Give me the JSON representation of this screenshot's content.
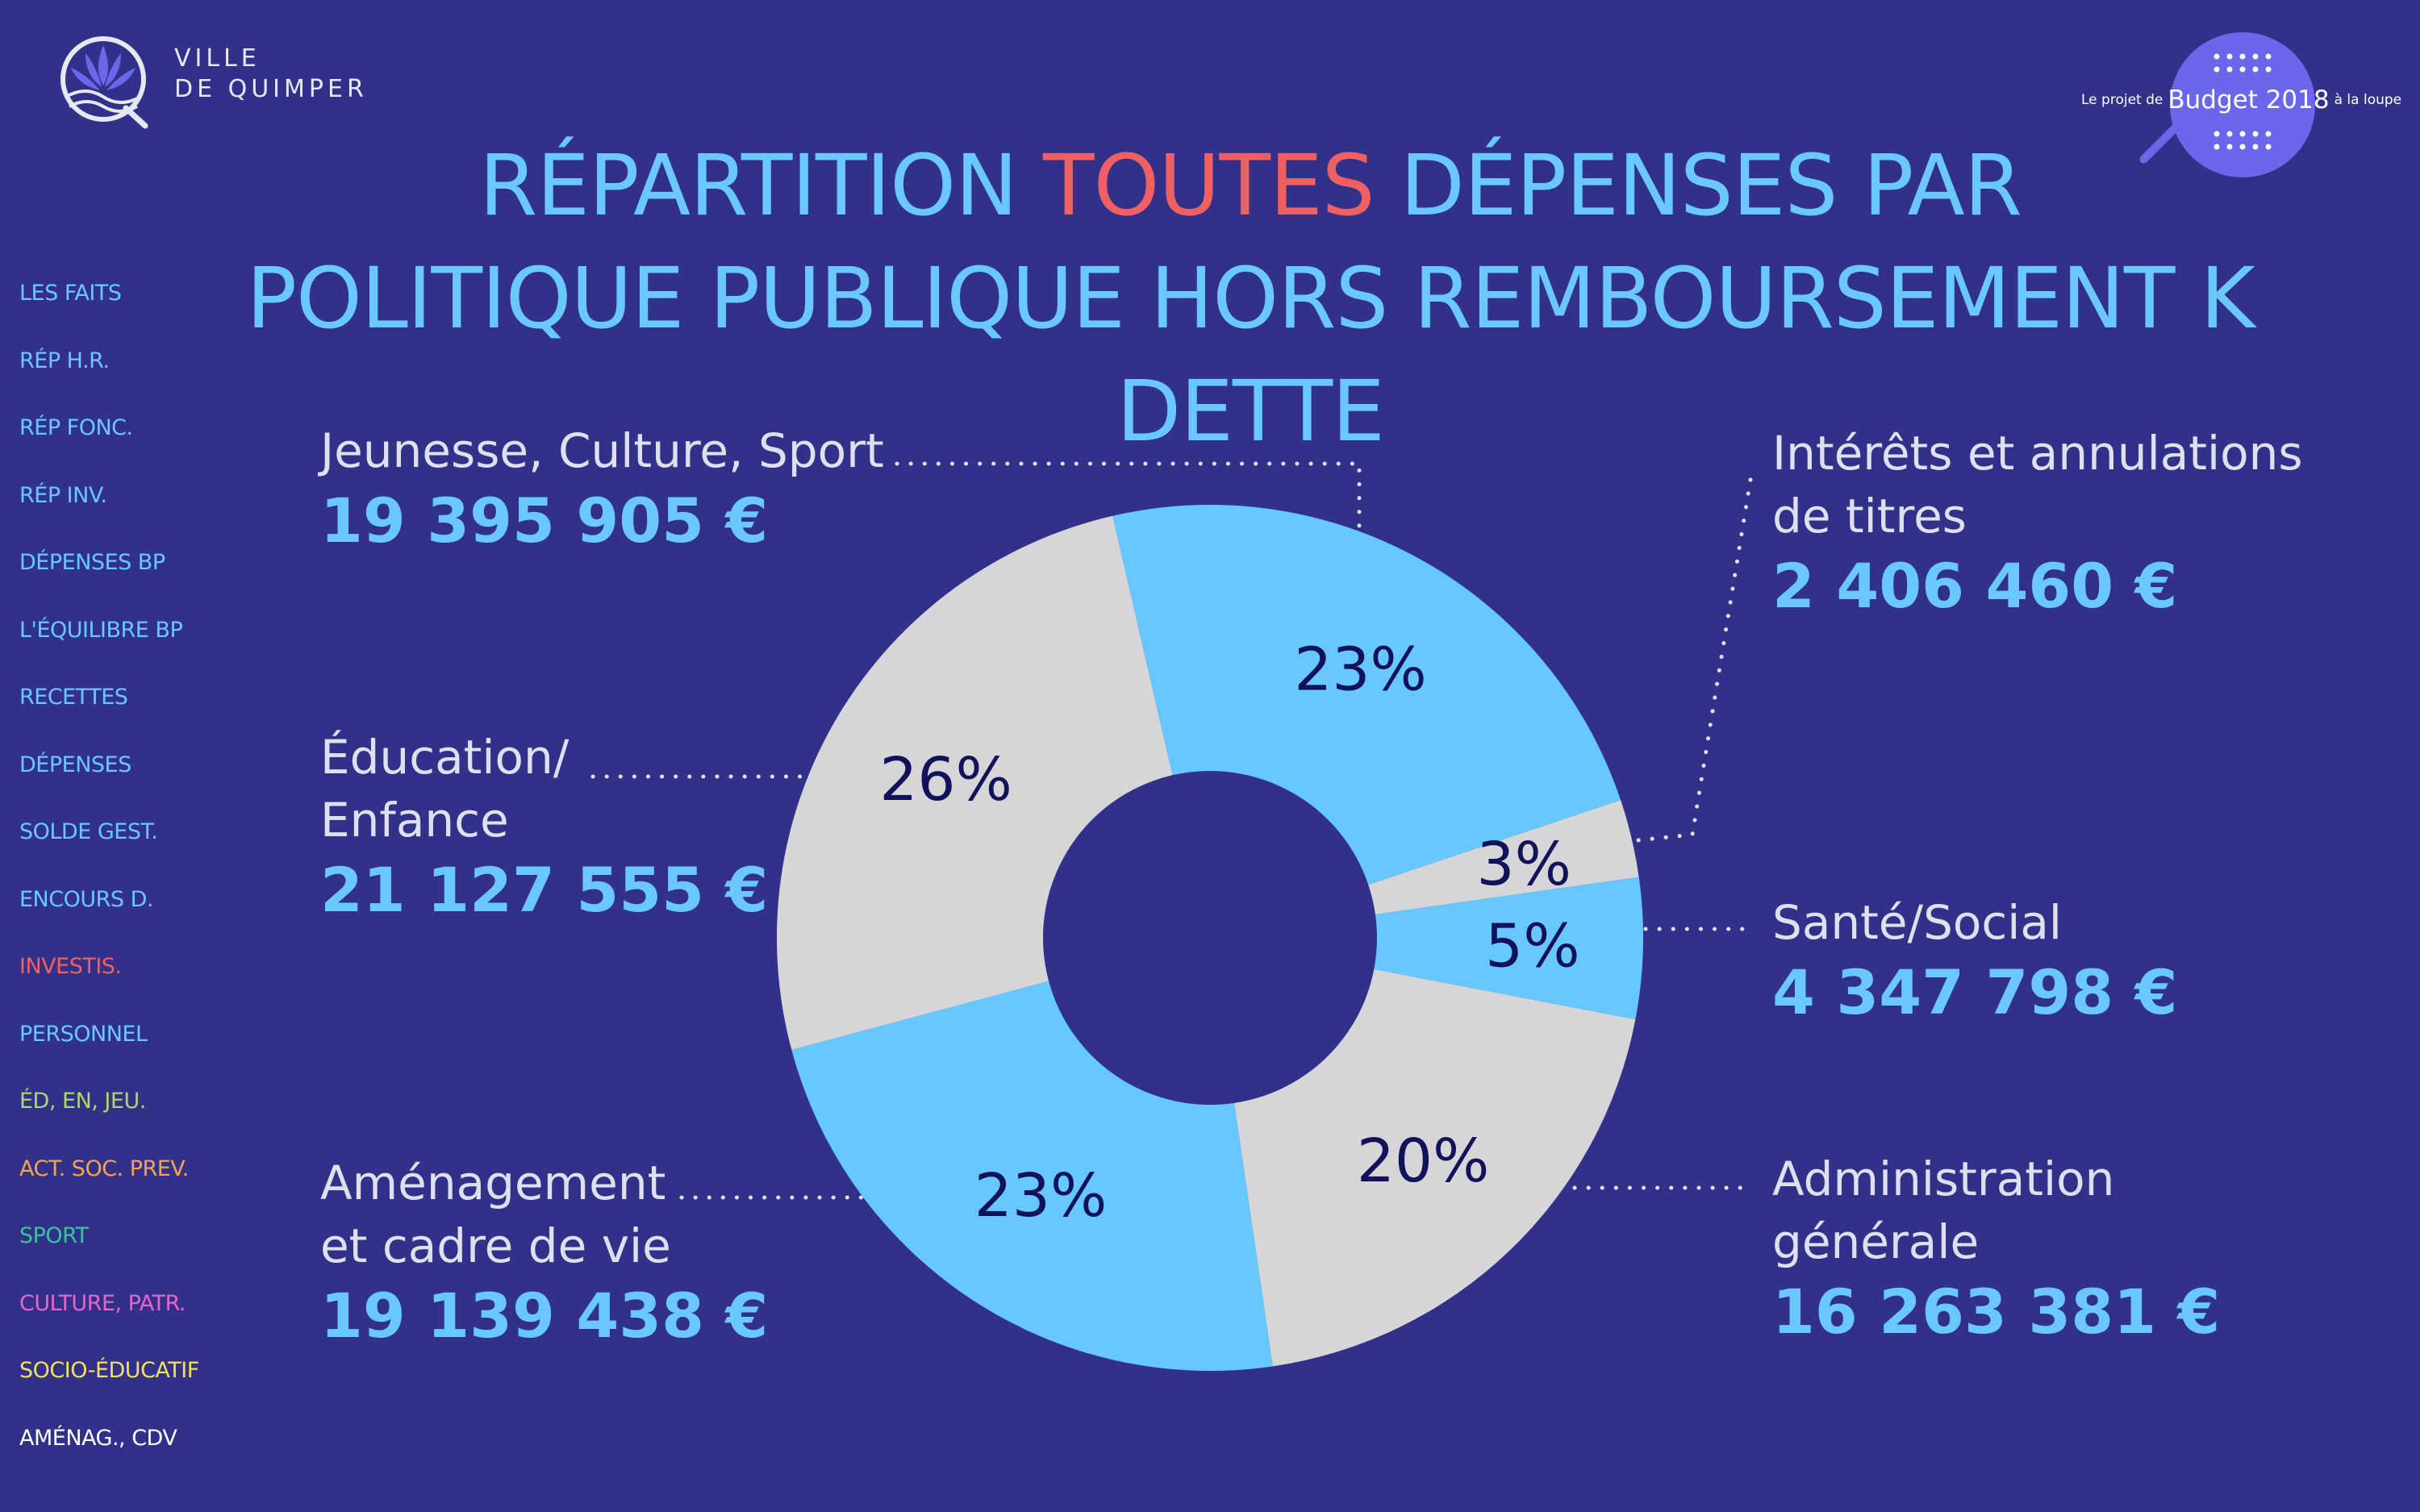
{
  "logo": {
    "line1": "VILLE",
    "line2": "DE QUIMPER"
  },
  "badge": {
    "prefix": "Le projet de",
    "main": "Budget 2018",
    "suffix": "à la loupe"
  },
  "title": {
    "part1": "RÉPARTITION ",
    "accent": "TOUTES",
    "part2": " DÉPENSES PAR",
    "line2": "POLITIQUE PUBLIQUE HORS REMBOURSEMENT K DETTE"
  },
  "colors": {
    "background": "#32318a",
    "title": "#6ac8ff",
    "accent": "#ee6062",
    "slice_blue": "#66c8fe",
    "slice_gray": "#d6d6d8",
    "pct_text": "#12125a",
    "amount": "#6ac8ff"
  },
  "nav": [
    {
      "label": "LES FAITS",
      "color": "#6ac8ff"
    },
    {
      "label": "RÉP H.R.",
      "color": "#6ac8ff"
    },
    {
      "label": "RÉP FONC.",
      "color": "#6ac8ff"
    },
    {
      "label": "RÉP INV.",
      "color": "#6ac8ff"
    },
    {
      "label": "DÉPENSES BP",
      "color": "#6ac8ff"
    },
    {
      "label": "L'ÉQUILIBRE BP",
      "color": "#6ac8ff"
    },
    {
      "label": "RECETTES",
      "color": "#6ac8ff"
    },
    {
      "label": "DÉPENSES",
      "color": "#6ac8ff"
    },
    {
      "label": "SOLDE GEST.",
      "color": "#6ac8ff"
    },
    {
      "label": "ENCOURS D.",
      "color": "#6ac8ff"
    },
    {
      "label": "INVESTIS.",
      "color": "#ee6062"
    },
    {
      "label": "PERSONNEL",
      "color": "#6ac8ff"
    },
    {
      "label": "ÉD, EN, JEU.",
      "color": "#a9d86e"
    },
    {
      "label": "ACT. SOC. PREV.",
      "color": "#f7a24e"
    },
    {
      "label": "SPORT",
      "color": "#39c39a"
    },
    {
      "label": "CULTURE, PATR.",
      "color": "#e866c8"
    },
    {
      "label": "SOCIO-ÉDUCATIF",
      "color": "#f3e05a"
    },
    {
      "label": "AMÉNAG., CDV",
      "color": "#ffffff"
    }
  ],
  "chart_data": {
    "type": "pie",
    "donut": true,
    "categories": [
      "Jeunesse, Culture, Sport",
      "Intérêts et annulations de titres",
      "Santé/Social",
      "Administration générale",
      "Aménagement et cadre de vie",
      "Éducation/ Enfance"
    ],
    "amounts": [
      "19 395 905 €",
      "2 406 460 €",
      "4 347 798 €",
      "16 263 381 €",
      "19 139 438 €",
      "21 127 555 €"
    ],
    "values": [
      19395905,
      2406460,
      4347798,
      16263381,
      19139438,
      21127555
    ],
    "percent_labels": [
      "23%",
      "3%",
      "5%",
      "20%",
      "23%",
      "26%"
    ],
    "slice_colors": [
      "#66c8fe",
      "#d6d6d8",
      "#66c8fe",
      "#d6d6d8",
      "#66c8fe",
      "#d6d6d8"
    ]
  },
  "labels": [
    {
      "name1": "Jeunesse, Culture, Sport",
      "name2": "",
      "amount": "19 395 905 €"
    },
    {
      "name1": "Intérêts et annulations",
      "name2": "de titres",
      "amount": "2 406 460 €"
    },
    {
      "name1": "Santé/Social",
      "name2": "",
      "amount": "4 347 798 €"
    },
    {
      "name1": "Administration",
      "name2": "générale",
      "amount": "16 263 381 €"
    },
    {
      "name1": "Aménagement",
      "name2": "et cadre de vie",
      "amount": "19 139 438 €"
    },
    {
      "name1": "Éducation/",
      "name2": "Enfance",
      "amount": "21 127 555 €"
    }
  ]
}
